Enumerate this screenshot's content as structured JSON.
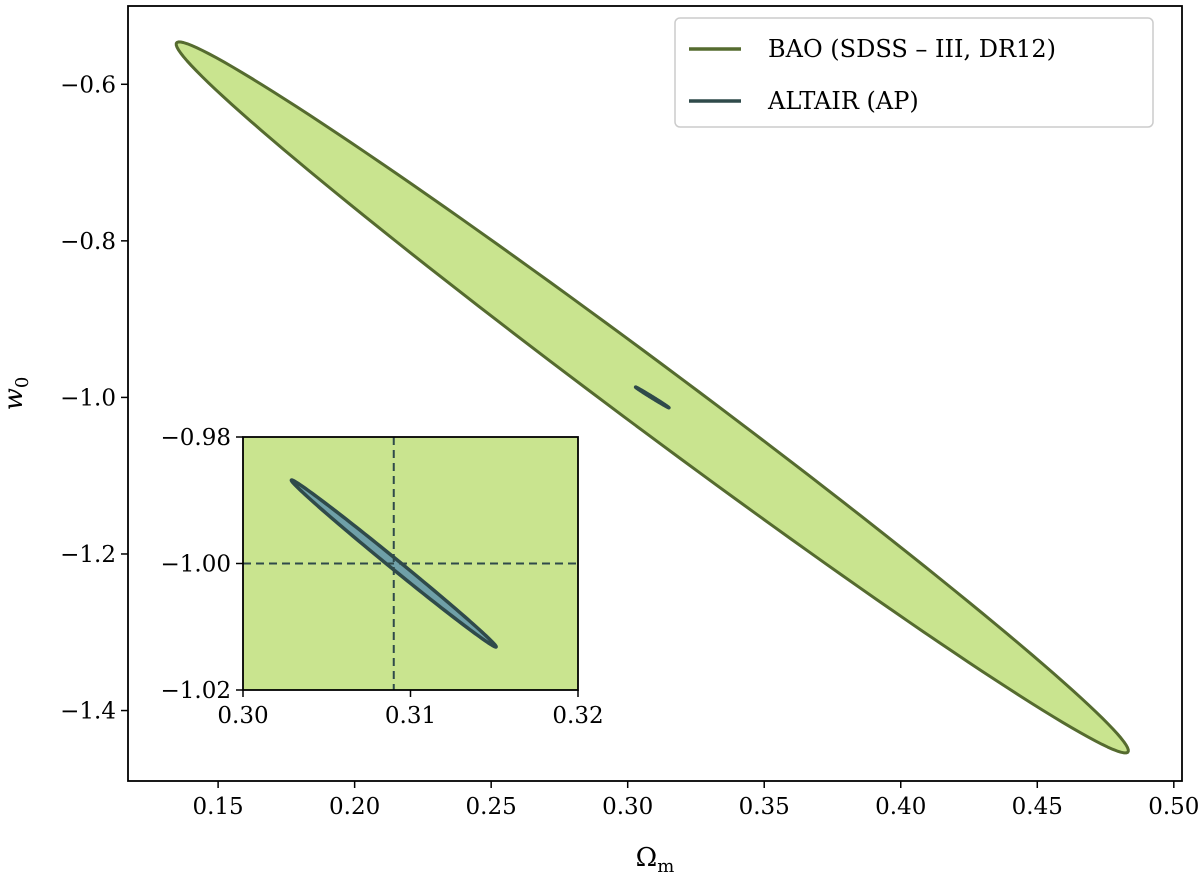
{
  "chart_data": [
    {
      "type": "contour",
      "title": "",
      "xlabel": "Ω",
      "xlabel_sub": "m",
      "ylabel": "w",
      "ylabel_sub": "0",
      "xlim": [
        0.117,
        0.503
      ],
      "ylim": [
        -1.49,
        -0.5
      ],
      "xticks": [
        0.15,
        0.2,
        0.25,
        0.3,
        0.35,
        0.4,
        0.45,
        0.5
      ],
      "xtick_labels": [
        "0.15",
        "0.20",
        "0.25",
        "0.30",
        "0.35",
        "0.40",
        "0.45",
        "0.50"
      ],
      "yticks": [
        -0.6,
        -0.8,
        -1.0,
        -1.2,
        -1.4
      ],
      "ytick_labels": [
        "−0.6",
        "−0.8",
        "−1.0",
        "−1.2",
        "−1.4"
      ],
      "grid": false,
      "legend_position": "top-right",
      "series": [
        {
          "name": "BAO (SDSS – III,  DR12)",
          "kind": "ellipse",
          "center": [
            0.309,
            -1.0
          ],
          "major_end_a": [
            0.1355,
            -0.5459
          ],
          "major_end_b": [
            0.4825,
            -1.4541
          ],
          "half_width": 0.0185,
          "fill": "#c9e48f",
          "stroke": "#556b2f"
        },
        {
          "name": "ALTAIR (AP)",
          "kind": "ellipse",
          "center": [
            0.309,
            -1.0
          ],
          "major_end_a": [
            0.3029,
            -0.9868
          ],
          "major_end_b": [
            0.3152,
            -1.0133
          ],
          "half_width": 0.00042,
          "fill": "#6fa0a8",
          "stroke": "#2f4a4a"
        }
      ]
    },
    {
      "type": "contour",
      "role": "inset",
      "xlim": [
        0.3,
        0.32
      ],
      "ylim": [
        -1.02,
        -0.98
      ],
      "xticks": [
        0.3,
        0.31,
        0.32
      ],
      "xtick_labels": [
        "0.30",
        "0.31",
        "0.32"
      ],
      "yticks": [
        -0.98,
        -1.0,
        -1.02
      ],
      "ytick_labels": [
        "−0.98",
        "−1.00",
        "−1.02"
      ],
      "background": "#c9e48f",
      "reference_lines": {
        "x": 0.309,
        "y": -1.0,
        "style": "dashed",
        "color": "#2f4a4a"
      },
      "series": [
        {
          "name": "ALTAIR (AP)",
          "kind": "ellipse",
          "center": [
            0.309,
            -1.0
          ],
          "major_end_a": [
            0.3029,
            -0.9868
          ],
          "major_end_b": [
            0.3152,
            -1.0133
          ],
          "half_width": 0.00042,
          "fill": "#6fa0a8",
          "stroke": "#2f4a4a"
        }
      ]
    }
  ]
}
